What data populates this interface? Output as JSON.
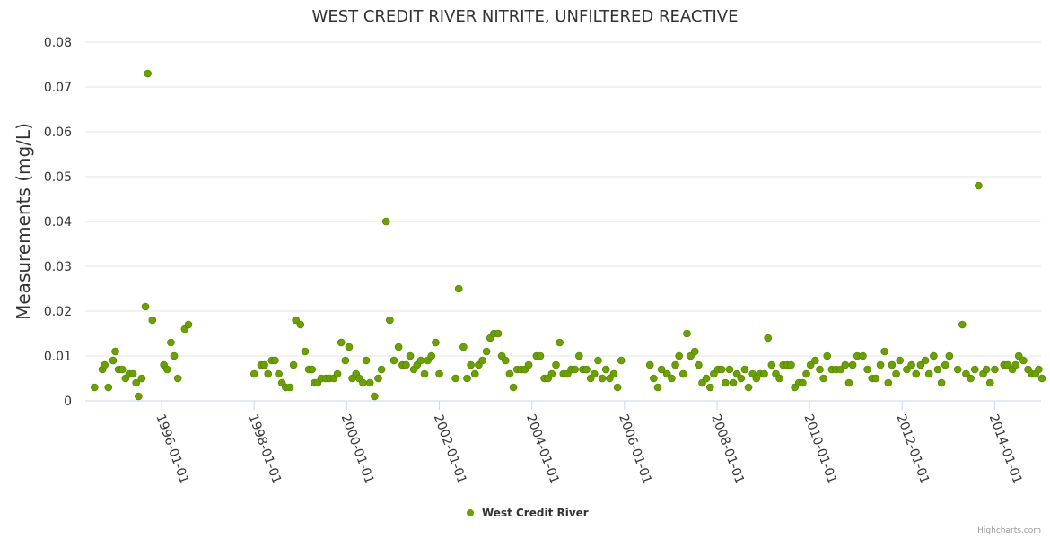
{
  "chart_data": {
    "type": "scatter",
    "title": "WEST CREDIT RIVER NITRITE, UNFILTERED REACTIVE",
    "xlabel": "",
    "ylabel": "Measurements (mg/L)",
    "ylim": [
      0,
      0.08
    ],
    "yticks": [
      "0",
      "0.01",
      "0.02",
      "0.03",
      "0.04",
      "0.05",
      "0.06",
      "0.07",
      "0.08"
    ],
    "xlim": [
      1994.35,
      2015.0
    ],
    "xticks": [
      {
        "label": "1996-01-01",
        "value": 1996.0
      },
      {
        "label": "1998-01-01",
        "value": 1998.0
      },
      {
        "label": "2000-01-01",
        "value": 2000.0
      },
      {
        "label": "2002-01-01",
        "value": 2002.0
      },
      {
        "label": "2004-01-01",
        "value": 2004.0
      },
      {
        "label": "2006-01-01",
        "value": 2006.0
      },
      {
        "label": "2008-01-01",
        "value": 2008.0
      },
      {
        "label": "2010-01-01",
        "value": 2010.0
      },
      {
        "label": "2012-01-01",
        "value": 2012.0
      },
      {
        "label": "2014-01-01",
        "value": 2014.0
      }
    ],
    "legend": {
      "label": "West Credit River",
      "position": "bottom-center"
    },
    "series": [
      {
        "name": "West Credit River",
        "color": "#6aa000",
        "points": [
          [
            1994.55,
            0.003
          ],
          [
            1994.72,
            0.007
          ],
          [
            1994.77,
            0.008
          ],
          [
            1994.85,
            0.003
          ],
          [
            1994.95,
            0.009
          ],
          [
            1995.0,
            0.011
          ],
          [
            1995.07,
            0.007
          ],
          [
            1995.15,
            0.007
          ],
          [
            1995.22,
            0.005
          ],
          [
            1995.3,
            0.006
          ],
          [
            1995.38,
            0.006
          ],
          [
            1995.45,
            0.004
          ],
          [
            1995.5,
            0.001
          ],
          [
            1995.57,
            0.005
          ],
          [
            1995.65,
            0.021
          ],
          [
            1995.7,
            0.073
          ],
          [
            1995.8,
            0.018
          ],
          [
            1996.05,
            0.008
          ],
          [
            1996.12,
            0.007
          ],
          [
            1996.2,
            0.013
          ],
          [
            1996.27,
            0.01
          ],
          [
            1996.35,
            0.005
          ],
          [
            1996.5,
            0.016
          ],
          [
            1996.58,
            0.017
          ],
          [
            1998.0,
            0.006
          ],
          [
            1998.15,
            0.008
          ],
          [
            1998.22,
            0.008
          ],
          [
            1998.3,
            0.006
          ],
          [
            1998.38,
            0.009
          ],
          [
            1998.45,
            0.009
          ],
          [
            1998.53,
            0.006
          ],
          [
            1998.6,
            0.004
          ],
          [
            1998.68,
            0.003
          ],
          [
            1998.77,
            0.003
          ],
          [
            1998.85,
            0.008
          ],
          [
            1998.9,
            0.018
          ],
          [
            1999.0,
            0.017
          ],
          [
            1999.1,
            0.011
          ],
          [
            1999.18,
            0.007
          ],
          [
            1999.25,
            0.007
          ],
          [
            1999.3,
            0.004
          ],
          [
            1999.37,
            0.004
          ],
          [
            1999.45,
            0.005
          ],
          [
            1999.55,
            0.005
          ],
          [
            1999.63,
            0.005
          ],
          [
            1999.72,
            0.005
          ],
          [
            1999.8,
            0.006
          ],
          [
            1999.88,
            0.013
          ],
          [
            1999.97,
            0.009
          ],
          [
            2000.05,
            0.012
          ],
          [
            2000.12,
            0.005
          ],
          [
            2000.2,
            0.006
          ],
          [
            2000.27,
            0.005
          ],
          [
            2000.35,
            0.004
          ],
          [
            2000.42,
            0.009
          ],
          [
            2000.5,
            0.004
          ],
          [
            2000.6,
            0.001
          ],
          [
            2000.68,
            0.005
          ],
          [
            2000.75,
            0.007
          ],
          [
            2000.85,
            0.04
          ],
          [
            2000.93,
            0.018
          ],
          [
            2001.02,
            0.009
          ],
          [
            2001.12,
            0.012
          ],
          [
            2001.2,
            0.008
          ],
          [
            2001.28,
            0.008
          ],
          [
            2001.37,
            0.01
          ],
          [
            2001.45,
            0.007
          ],
          [
            2001.52,
            0.008
          ],
          [
            2001.6,
            0.009
          ],
          [
            2001.68,
            0.006
          ],
          [
            2001.75,
            0.009
          ],
          [
            2001.83,
            0.01
          ],
          [
            2001.92,
            0.013
          ],
          [
            2002.0,
            0.006
          ],
          [
            2002.35,
            0.005
          ],
          [
            2002.42,
            0.025
          ],
          [
            2002.52,
            0.012
          ],
          [
            2002.6,
            0.005
          ],
          [
            2002.68,
            0.008
          ],
          [
            2002.77,
            0.006
          ],
          [
            2002.85,
            0.008
          ],
          [
            2002.93,
            0.009
          ],
          [
            2003.02,
            0.011
          ],
          [
            2003.1,
            0.014
          ],
          [
            2003.18,
            0.015
          ],
          [
            2003.27,
            0.015
          ],
          [
            2003.35,
            0.01
          ],
          [
            2003.43,
            0.009
          ],
          [
            2003.52,
            0.006
          ],
          [
            2003.6,
            0.003
          ],
          [
            2003.68,
            0.007
          ],
          [
            2003.77,
            0.007
          ],
          [
            2003.85,
            0.007
          ],
          [
            2003.93,
            0.008
          ],
          [
            2004.1,
            0.01
          ],
          [
            2004.18,
            0.01
          ],
          [
            2004.27,
            0.005
          ],
          [
            2004.35,
            0.005
          ],
          [
            2004.43,
            0.006
          ],
          [
            2004.52,
            0.008
          ],
          [
            2004.6,
            0.013
          ],
          [
            2004.68,
            0.006
          ],
          [
            2004.77,
            0.006
          ],
          [
            2004.85,
            0.007
          ],
          [
            2004.93,
            0.007
          ],
          [
            2005.02,
            0.01
          ],
          [
            2005.1,
            0.007
          ],
          [
            2005.18,
            0.007
          ],
          [
            2005.27,
            0.005
          ],
          [
            2005.35,
            0.006
          ],
          [
            2005.43,
            0.009
          ],
          [
            2005.52,
            0.005
          ],
          [
            2005.6,
            0.007
          ],
          [
            2005.68,
            0.005
          ],
          [
            2005.77,
            0.006
          ],
          [
            2005.85,
            0.003
          ],
          [
            2005.93,
            0.009
          ],
          [
            2006.55,
            0.008
          ],
          [
            2006.63,
            0.005
          ],
          [
            2006.72,
            0.003
          ],
          [
            2006.8,
            0.007
          ],
          [
            2006.92,
            0.006
          ],
          [
            2007.02,
            0.005
          ],
          [
            2007.1,
            0.008
          ],
          [
            2007.18,
            0.01
          ],
          [
            2007.27,
            0.006
          ],
          [
            2007.35,
            0.015
          ],
          [
            2007.43,
            0.01
          ],
          [
            2007.52,
            0.011
          ],
          [
            2007.6,
            0.008
          ],
          [
            2007.68,
            0.004
          ],
          [
            2007.77,
            0.005
          ],
          [
            2007.85,
            0.003
          ],
          [
            2007.93,
            0.006
          ],
          [
            2008.02,
            0.007
          ],
          [
            2008.1,
            0.007
          ],
          [
            2008.18,
            0.004
          ],
          [
            2008.27,
            0.007
          ],
          [
            2008.35,
            0.004
          ],
          [
            2008.43,
            0.006
          ],
          [
            2008.52,
            0.005
          ],
          [
            2008.6,
            0.007
          ],
          [
            2008.68,
            0.003
          ],
          [
            2008.77,
            0.006
          ],
          [
            2008.85,
            0.005
          ],
          [
            2008.93,
            0.006
          ],
          [
            2009.02,
            0.006
          ],
          [
            2009.1,
            0.014
          ],
          [
            2009.18,
            0.008
          ],
          [
            2009.27,
            0.006
          ],
          [
            2009.35,
            0.005
          ],
          [
            2009.43,
            0.008
          ],
          [
            2009.52,
            0.008
          ],
          [
            2009.6,
            0.008
          ],
          [
            2009.68,
            0.003
          ],
          [
            2009.77,
            0.004
          ],
          [
            2009.85,
            0.004
          ],
          [
            2009.93,
            0.006
          ],
          [
            2010.02,
            0.008
          ],
          [
            2010.12,
            0.009
          ],
          [
            2010.22,
            0.007
          ],
          [
            2010.3,
            0.005
          ],
          [
            2010.38,
            0.01
          ],
          [
            2010.48,
            0.007
          ],
          [
            2010.57,
            0.007
          ],
          [
            2010.67,
            0.007
          ],
          [
            2010.77,
            0.008
          ],
          [
            2010.85,
            0.004
          ],
          [
            2010.93,
            0.008
          ],
          [
            2011.03,
            0.01
          ],
          [
            2011.15,
            0.01
          ],
          [
            2011.25,
            0.007
          ],
          [
            2011.35,
            0.005
          ],
          [
            2011.43,
            0.005
          ],
          [
            2011.53,
            0.008
          ],
          [
            2011.62,
            0.011
          ],
          [
            2011.7,
            0.004
          ],
          [
            2011.78,
            0.008
          ],
          [
            2011.87,
            0.006
          ],
          [
            2011.95,
            0.009
          ],
          [
            2012.1,
            0.007
          ],
          [
            2012.2,
            0.008
          ],
          [
            2012.3,
            0.006
          ],
          [
            2012.4,
            0.008
          ],
          [
            2012.5,
            0.009
          ],
          [
            2012.58,
            0.006
          ],
          [
            2012.68,
            0.01
          ],
          [
            2012.77,
            0.007
          ],
          [
            2012.85,
            0.004
          ],
          [
            2012.93,
            0.008
          ],
          [
            2013.02,
            0.01
          ],
          [
            2013.2,
            0.007
          ],
          [
            2013.3,
            0.017
          ],
          [
            2013.38,
            0.006
          ],
          [
            2013.48,
            0.005
          ],
          [
            2013.57,
            0.007
          ],
          [
            2013.65,
            0.048
          ],
          [
            2013.75,
            0.006
          ],
          [
            2013.82,
            0.007
          ],
          [
            2013.9,
            0.004
          ],
          [
            2014.0,
            0.007
          ],
          [
            2014.2,
            0.008
          ],
          [
            2014.28,
            0.008
          ],
          [
            2014.38,
            0.007
          ],
          [
            2014.45,
            0.008
          ],
          [
            2014.52,
            0.01
          ],
          [
            2014.62,
            0.009
          ],
          [
            2014.72,
            0.007
          ],
          [
            2014.8,
            0.006
          ],
          [
            2014.88,
            0.006
          ],
          [
            2014.95,
            0.007
          ],
          [
            2015.02,
            0.005
          ]
        ]
      }
    ]
  },
  "credits": "Highcharts.com"
}
